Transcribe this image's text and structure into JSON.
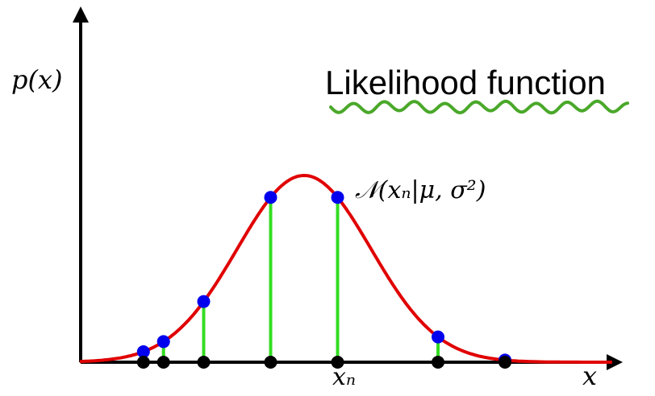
{
  "title": "Likelihood function",
  "y_axis_label": "p(x)",
  "x_axis_label": "x",
  "curve_label": "𝒩(xₙ|μ, σ²)",
  "point_label": "xₙ",
  "colors": {
    "curve": "#e00000",
    "stems": "#33dd22",
    "points": "#0000ee",
    "axis_points": "#000000",
    "underline": "#4aa82a",
    "axes": "#000000"
  },
  "chart_data": {
    "type": "line",
    "mean": 0,
    "std": 1,
    "samples": [
      -2.4,
      -2.1,
      -1.5,
      -0.5,
      0.5,
      2.0,
      3.0
    ],
    "highlighted_index": 4
  }
}
